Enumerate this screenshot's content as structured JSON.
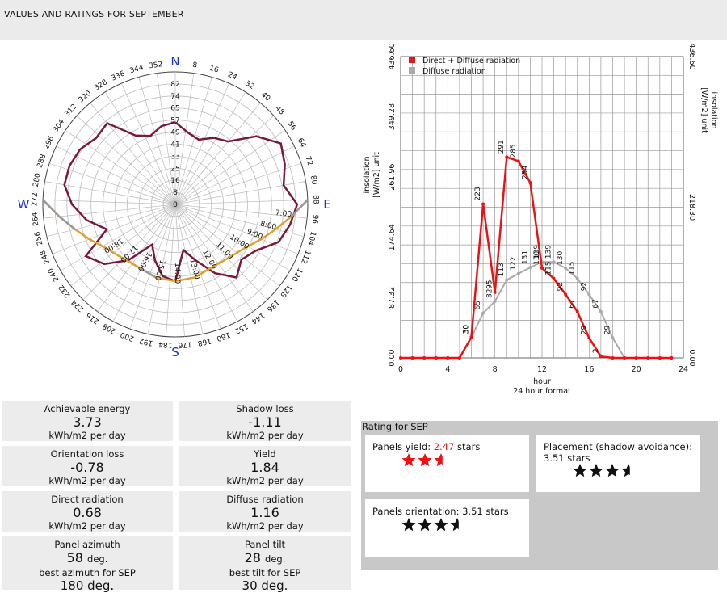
{
  "header": {
    "title": "VALUES AND RATINGS FOR SEPTEMBER"
  },
  "polar": {
    "cardinals": {
      "north": "N",
      "east": "E",
      "south": "S",
      "west": "W"
    },
    "azimuth_labels": [
      "8",
      "16",
      "24",
      "32",
      "40",
      "48",
      "56",
      "64",
      "72",
      "80",
      "88",
      "96",
      "104",
      "112",
      "120",
      "128",
      "136",
      "144",
      "152",
      "160",
      "168",
      "176",
      "184",
      "192",
      "200",
      "208",
      "216",
      "224",
      "232",
      "240",
      "248",
      "256",
      "264",
      "272",
      "280",
      "288",
      "296",
      "304",
      "312",
      "320",
      "328",
      "336",
      "344",
      "352"
    ],
    "radial_labels": [
      "0",
      "8",
      "16",
      "25",
      "33",
      "41",
      "49",
      "57",
      "65",
      "74",
      "82"
    ],
    "sun_path_hour_labels": [
      "7:00",
      "8:00",
      "9:00",
      "10:00",
      "11:00",
      "12:00",
      "13:00",
      "14:00",
      "15:00",
      "16:00",
      "17:00",
      "18:00"
    ],
    "colors": {
      "horizon": "#7a1a3a",
      "sun_path": "#e0a030",
      "sun_path_hidden": "#999999",
      "cardinal": "#1a2fd8"
    }
  },
  "insolation_chart": {
    "legend": {
      "total": "Direct + Diffuse radiation",
      "diffuse": "Diffuse radiation"
    },
    "y_left_title_1": "insolation",
    "y_left_title_2": "[W/m2] unit",
    "y_right_title_1": "insolation",
    "y_right_title_2": "[W/m2] unit",
    "x_title_1": "hour",
    "x_title_2": "24 hour format",
    "left_tick_labels": [
      "0.00",
      "87.32",
      "174.64",
      "261.96",
      "349.28",
      "436.60"
    ],
    "right_tick_labels": [
      "0.00",
      "218.30",
      "436.60"
    ],
    "x_tick_labels": [
      "0",
      "4",
      "8",
      "12",
      "16",
      "20",
      "24"
    ],
    "colors": {
      "total": "#ee1111",
      "diffuse": "#aaaaaa"
    }
  },
  "chart_data": {
    "type": "line",
    "xlabel": "hour",
    "ylabel": "insolation [W/m2] unit",
    "xlim": [
      0,
      24
    ],
    "ylim": [
      0,
      436.6
    ],
    "grid": true,
    "legend_position": "top-left",
    "series": [
      {
        "name": "Direct + Diffuse radiation",
        "x": [
          0,
          1,
          2,
          3,
          4,
          5,
          6,
          7,
          8,
          9,
          10,
          11,
          12,
          13,
          14,
          15,
          16,
          17,
          18,
          19,
          20,
          21,
          22,
          23
        ],
        "values": [
          0,
          0,
          0,
          0,
          0,
          0,
          30,
          223,
          95,
          291,
          285,
          254,
          130,
          115,
          92,
          67,
          29,
          2,
          0,
          0,
          0,
          0,
          0,
          0
        ],
        "point_labels": [
          "0",
          "0",
          "0",
          "0",
          "0",
          "0",
          "30",
          "223",
          "95",
          "291",
          "285",
          "254",
          "130",
          "115",
          "92",
          "67",
          "29",
          "2",
          "0",
          "0",
          "0",
          "0",
          "0",
          "0"
        ]
      },
      {
        "name": "Diffuse radiation",
        "x": [
          0,
          1,
          2,
          3,
          4,
          5,
          6,
          7,
          8,
          9,
          10,
          11,
          12,
          13,
          14,
          15,
          16,
          17,
          18,
          19,
          20,
          21,
          22,
          23
        ],
        "values": [
          0,
          0,
          0,
          0,
          0,
          0,
          30,
          65,
          82,
          113,
          122,
          131,
          139,
          139,
          130,
          115,
          92,
          67,
          29,
          0,
          0,
          0,
          0,
          0
        ],
        "point_labels": [
          "0",
          "0",
          "0",
          "0",
          "0",
          "0",
          "30",
          "65",
          "82",
          "113",
          "122",
          "131",
          "139",
          "139",
          "130",
          "115",
          "92",
          "67",
          "29",
          "0",
          "0",
          "0",
          "0",
          "0"
        ]
      }
    ]
  },
  "stats": {
    "achievable": {
      "label": "Achievable energy",
      "value": "3.73",
      "unit": "kWh/m2 per day"
    },
    "shadow": {
      "label": "Shadow loss",
      "value": "-1.11",
      "unit": "kWh/m2 per day"
    },
    "orientation": {
      "label": "Orientation loss",
      "value": "-0.78",
      "unit": "kWh/m2 per day"
    },
    "yield": {
      "label": "Yield",
      "value": "1.84",
      "unit": "kWh/m2 per day"
    },
    "direct": {
      "label": "Direct radiation",
      "value": "0.68",
      "unit": "kWh/m2 per day"
    },
    "diffuse": {
      "label": "Diffuse radiation",
      "value": "1.16",
      "unit": "kWh/m2 per day"
    },
    "azimuth": {
      "label": "Panel azimuth",
      "value": "58",
      "unit": "deg.",
      "best_label": "best azimuth for SEP",
      "best_value": "180 deg."
    },
    "tilt": {
      "label": "Panel tilt",
      "value": "28",
      "unit": "deg.",
      "best_label": "best tilt for SEP",
      "best_value": "30 deg."
    }
  },
  "rating": {
    "title": "Rating for SEP",
    "yield": {
      "label": "Panels yield:",
      "value": "2.47",
      "suffix": "stars",
      "stars": 2.47,
      "color": "#ee1111"
    },
    "placement": {
      "label": "Placement (shadow avoidance):",
      "value_text": "3.51 stars",
      "stars": 3.51,
      "color": "#111111"
    },
    "orientation": {
      "label": "Panels orientation:",
      "value_text": "3.51 stars",
      "stars": 3.51,
      "color": "#111111"
    }
  }
}
